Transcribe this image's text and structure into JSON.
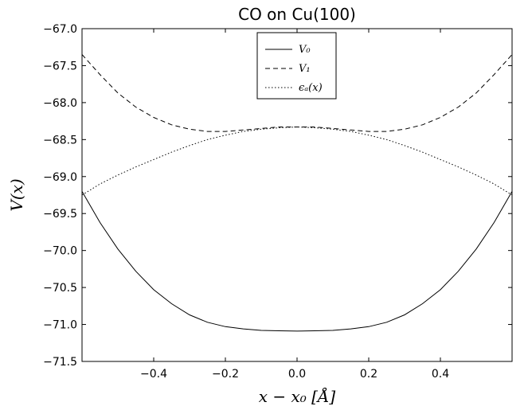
{
  "chart_data": {
    "type": "line",
    "title": "CO on Cu(100)",
    "xlabel": "x − x₀ [Å]",
    "ylabel": "V(x)",
    "xlim": [
      -0.6,
      0.6
    ],
    "ylim": [
      -71.5,
      -67.0
    ],
    "xticks": [
      -0.4,
      -0.2,
      0.0,
      0.2,
      0.4
    ],
    "xtick_labels": [
      "−0.4",
      "−0.2",
      "0.0",
      "0.2",
      "0.4"
    ],
    "yticks": [
      -67.0,
      -67.5,
      -68.0,
      -68.5,
      -69.0,
      -69.5,
      -70.0,
      -70.5,
      -71.0,
      -71.5
    ],
    "ytick_labels": [
      "−67.0",
      "−67.5",
      "−68.0",
      "−68.5",
      "−69.0",
      "−69.5",
      "−70.0",
      "−70.5",
      "−71.0",
      "−71.5"
    ],
    "grid": false,
    "legend_position": "top-center",
    "series": [
      {
        "name": "V₀",
        "style": "solid",
        "x": [
          -0.6,
          -0.55,
          -0.5,
          -0.45,
          -0.4,
          -0.35,
          -0.3,
          -0.25,
          -0.2,
          -0.15,
          -0.1,
          -0.05,
          0.0,
          0.05,
          0.1,
          0.15,
          0.2,
          0.25,
          0.3,
          0.35,
          0.4,
          0.45,
          0.5,
          0.55,
          0.6
        ],
        "values": [
          -69.2,
          -69.62,
          -69.98,
          -70.28,
          -70.53,
          -70.72,
          -70.87,
          -70.97,
          -71.03,
          -71.06,
          -71.08,
          -71.085,
          -71.09,
          -71.085,
          -71.08,
          -71.06,
          -71.03,
          -70.97,
          -70.87,
          -70.72,
          -70.53,
          -70.28,
          -69.98,
          -69.62,
          -69.2
        ]
      },
      {
        "name": "V₁",
        "style": "dashed",
        "x": [
          -0.6,
          -0.55,
          -0.5,
          -0.45,
          -0.4,
          -0.35,
          -0.3,
          -0.25,
          -0.2,
          -0.15,
          -0.1,
          -0.05,
          0.0,
          0.05,
          0.1,
          0.15,
          0.2,
          0.25,
          0.3,
          0.35,
          0.4,
          0.45,
          0.5,
          0.55,
          0.6
        ],
        "values": [
          -67.35,
          -67.62,
          -67.87,
          -68.06,
          -68.2,
          -68.3,
          -68.36,
          -68.39,
          -68.39,
          -68.37,
          -68.35,
          -68.33,
          -68.33,
          -68.33,
          -68.35,
          -68.37,
          -68.39,
          -68.39,
          -68.36,
          -68.3,
          -68.2,
          -68.06,
          -67.87,
          -67.62,
          -67.35
        ]
      },
      {
        "name": "ϵₐ(x)",
        "style": "dotted",
        "x": [
          -0.6,
          -0.55,
          -0.5,
          -0.45,
          -0.4,
          -0.35,
          -0.3,
          -0.25,
          -0.2,
          -0.15,
          -0.1,
          -0.05,
          0.0,
          0.05,
          0.1,
          0.15,
          0.2,
          0.25,
          0.3,
          0.35,
          0.4,
          0.45,
          0.5,
          0.55,
          0.6
        ],
        "values": [
          -69.25,
          -69.1,
          -68.98,
          -68.87,
          -68.77,
          -68.67,
          -68.58,
          -68.5,
          -68.44,
          -68.39,
          -68.36,
          -68.34,
          -68.33,
          -68.34,
          -68.36,
          -68.39,
          -68.44,
          -68.5,
          -68.58,
          -68.67,
          -68.77,
          -68.87,
          -68.98,
          -69.1,
          -69.25
        ]
      }
    ]
  }
}
